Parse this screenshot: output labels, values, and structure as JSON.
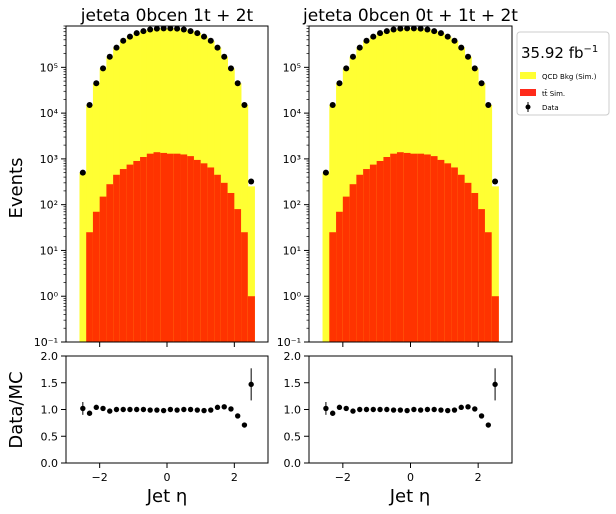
{
  "figure": {
    "ylabel_top": "Events",
    "ylabel_bottom": "Data/MC",
    "xlabel": "Jet η"
  },
  "legend": {
    "lumi": "35.92 fb",
    "lumi_exp": "−1",
    "entries": [
      {
        "label": "QCD Bkg (Sim.)",
        "color": "#ffff33",
        "kind": "patch"
      },
      {
        "label": "tt̄ Sim.",
        "color": "#ff2a1a",
        "kind": "patch"
      },
      {
        "label": "Data",
        "color": "#000000",
        "kind": "errorbar"
      }
    ]
  },
  "colors": {
    "qcd": "#ffff33",
    "ttbar": "#ff3300",
    "data": "#000000"
  },
  "chart_data": [
    {
      "type": "bar",
      "title": "jeteta  0bcen 1t + 2t",
      "xlabel": "Jet η",
      "ylabel": "Events",
      "yscale": "log",
      "ylim": [
        0.1,
        800000
      ],
      "xlim": [
        -3,
        3
      ],
      "x_ticks": [
        -2,
        0,
        2
      ],
      "y_tick_labels": [
        "10^-1",
        "10^0",
        "10^1",
        "10^2",
        "10^3",
        "10^4",
        "10^5"
      ],
      "bin_edges": [
        -2.6,
        -2.4,
        -2.2,
        -2.0,
        -1.8,
        -1.6,
        -1.4,
        -1.2,
        -1.0,
        -0.8,
        -0.6,
        -0.4,
        -0.2,
        0.0,
        0.2,
        0.4,
        0.6,
        0.8,
        1.0,
        1.2,
        1.4,
        1.6,
        1.8,
        2.0,
        2.2,
        2.4,
        2.6
      ],
      "series": [
        {
          "name": "QCD Bkg (Sim.)",
          "values": [
            500,
            15000,
            45000,
            95000,
            170000,
            270000,
            380000,
            470000,
            560000,
            620000,
            670000,
            700000,
            710000,
            710000,
            700000,
            670000,
            620000,
            560000,
            470000,
            380000,
            270000,
            170000,
            95000,
            45000,
            15000,
            250
          ]
        },
        {
          "name": "tt̄ Sim.",
          "values": [
            0,
            25,
            70,
            150,
            280,
            450,
            600,
            750,
            900,
            1100,
            1300,
            1400,
            1350,
            1300,
            1300,
            1250,
            1150,
            950,
            800,
            650,
            450,
            300,
            180,
            80,
            25,
            1
          ]
        },
        {
          "name": "Data",
          "x": [
            -2.5,
            -2.3,
            -2.1,
            -1.9,
            -1.7,
            -1.5,
            -1.3,
            -1.1,
            -0.9,
            -0.7,
            -0.5,
            -0.3,
            -0.1,
            0.1,
            0.3,
            0.5,
            0.7,
            0.9,
            1.1,
            1.3,
            1.5,
            1.7,
            1.9,
            2.1,
            2.3,
            2.5
          ],
          "values": [
            500,
            15000,
            45000,
            95000,
            170000,
            270000,
            380000,
            470000,
            560000,
            620000,
            670000,
            700000,
            710000,
            710000,
            700000,
            670000,
            620000,
            560000,
            470000,
            380000,
            270000,
            170000,
            95000,
            45000,
            15000,
            320
          ]
        }
      ]
    },
    {
      "type": "bar",
      "title": "jeteta  0bcen 0t + 1t + 2t",
      "xlabel": "Jet η",
      "ylabel": "",
      "yscale": "log",
      "ylim": [
        0.1,
        800000
      ],
      "xlim": [
        -3,
        3
      ],
      "x_ticks": [
        -2,
        0,
        2
      ],
      "y_tick_labels": [
        "10^-1",
        "10^0",
        "10^1",
        "10^2",
        "10^3",
        "10^4",
        "10^5"
      ],
      "bin_edges": [
        -2.6,
        -2.4,
        -2.2,
        -2.0,
        -1.8,
        -1.6,
        -1.4,
        -1.2,
        -1.0,
        -0.8,
        -0.6,
        -0.4,
        -0.2,
        0.0,
        0.2,
        0.4,
        0.6,
        0.8,
        1.0,
        1.2,
        1.4,
        1.6,
        1.8,
        2.0,
        2.2,
        2.4,
        2.6
      ],
      "series": [
        {
          "name": "QCD Bkg (Sim.)",
          "values": [
            500,
            15000,
            45000,
            95000,
            170000,
            270000,
            380000,
            470000,
            560000,
            620000,
            670000,
            700000,
            710000,
            710000,
            700000,
            670000,
            620000,
            560000,
            470000,
            380000,
            270000,
            170000,
            95000,
            45000,
            15000,
            250
          ]
        },
        {
          "name": "tt̄ Sim.",
          "values": [
            0,
            25,
            70,
            150,
            280,
            450,
            600,
            750,
            900,
            1100,
            1300,
            1400,
            1350,
            1300,
            1300,
            1250,
            1150,
            950,
            800,
            650,
            450,
            300,
            180,
            80,
            25,
            1
          ]
        },
        {
          "name": "Data",
          "x": [
            -2.5,
            -2.3,
            -2.1,
            -1.9,
            -1.7,
            -1.5,
            -1.3,
            -1.1,
            -0.9,
            -0.7,
            -0.5,
            -0.3,
            -0.1,
            0.1,
            0.3,
            0.5,
            0.7,
            0.9,
            1.1,
            1.3,
            1.5,
            1.7,
            1.9,
            2.1,
            2.3,
            2.5
          ],
          "values": [
            500,
            15000,
            45000,
            95000,
            170000,
            270000,
            380000,
            470000,
            560000,
            620000,
            670000,
            700000,
            710000,
            710000,
            700000,
            670000,
            620000,
            560000,
            470000,
            380000,
            270000,
            170000,
            95000,
            45000,
            15000,
            320
          ]
        }
      ]
    },
    {
      "type": "scatter",
      "title": "",
      "xlabel": "Jet η",
      "ylabel": "Data/MC",
      "ylim": [
        0,
        2
      ],
      "xlim": [
        -3,
        3
      ],
      "y_ticks": [
        "0.0",
        "0.5",
        "1.0",
        "1.5",
        "2.0"
      ],
      "x": [
        -2.5,
        -2.3,
        -2.1,
        -1.9,
        -1.7,
        -1.5,
        -1.3,
        -1.1,
        -0.9,
        -0.7,
        -0.5,
        -0.3,
        -0.1,
        0.1,
        0.3,
        0.5,
        0.7,
        0.9,
        1.1,
        1.3,
        1.5,
        1.7,
        1.9,
        2.1,
        2.3,
        2.5
      ],
      "values": [
        1.02,
        0.93,
        1.04,
        1.02,
        0.97,
        1.0,
        1.0,
        1.0,
        1.0,
        1.0,
        0.99,
        0.99,
        0.98,
        1.0,
        0.99,
        1.0,
        1.0,
        0.99,
        0.98,
        0.99,
        1.04,
        1.05,
        1.01,
        0.88,
        0.71,
        1.47
      ],
      "errors": [
        0.12,
        0.03,
        0.02,
        0.02,
        0.01,
        0.01,
        0.01,
        0.01,
        0.01,
        0.01,
        0.01,
        0.01,
        0.01,
        0.01,
        0.01,
        0.01,
        0.01,
        0.01,
        0.01,
        0.01,
        0.01,
        0.02,
        0.02,
        0.03,
        0.03,
        0.3
      ]
    },
    {
      "type": "scatter",
      "title": "",
      "xlabel": "Jet η",
      "ylabel": "",
      "ylim": [
        0,
        2
      ],
      "xlim": [
        -3,
        3
      ],
      "y_ticks": [
        "0.0",
        "0.5",
        "1.0",
        "1.5",
        "2.0"
      ],
      "x": [
        -2.5,
        -2.3,
        -2.1,
        -1.9,
        -1.7,
        -1.5,
        -1.3,
        -1.1,
        -0.9,
        -0.7,
        -0.5,
        -0.3,
        -0.1,
        0.1,
        0.3,
        0.5,
        0.7,
        0.9,
        1.1,
        1.3,
        1.5,
        1.7,
        1.9,
        2.1,
        2.3,
        2.5
      ],
      "values": [
        1.02,
        0.93,
        1.04,
        1.02,
        0.97,
        1.0,
        1.0,
        1.0,
        1.0,
        1.0,
        0.99,
        0.99,
        0.98,
        1.0,
        0.99,
        1.0,
        1.0,
        0.99,
        0.98,
        0.99,
        1.04,
        1.05,
        1.01,
        0.88,
        0.71,
        1.47
      ],
      "errors": [
        0.12,
        0.03,
        0.02,
        0.02,
        0.01,
        0.01,
        0.01,
        0.01,
        0.01,
        0.01,
        0.01,
        0.01,
        0.01,
        0.01,
        0.01,
        0.01,
        0.01,
        0.01,
        0.01,
        0.01,
        0.01,
        0.02,
        0.02,
        0.03,
        0.03,
        0.3
      ]
    }
  ]
}
